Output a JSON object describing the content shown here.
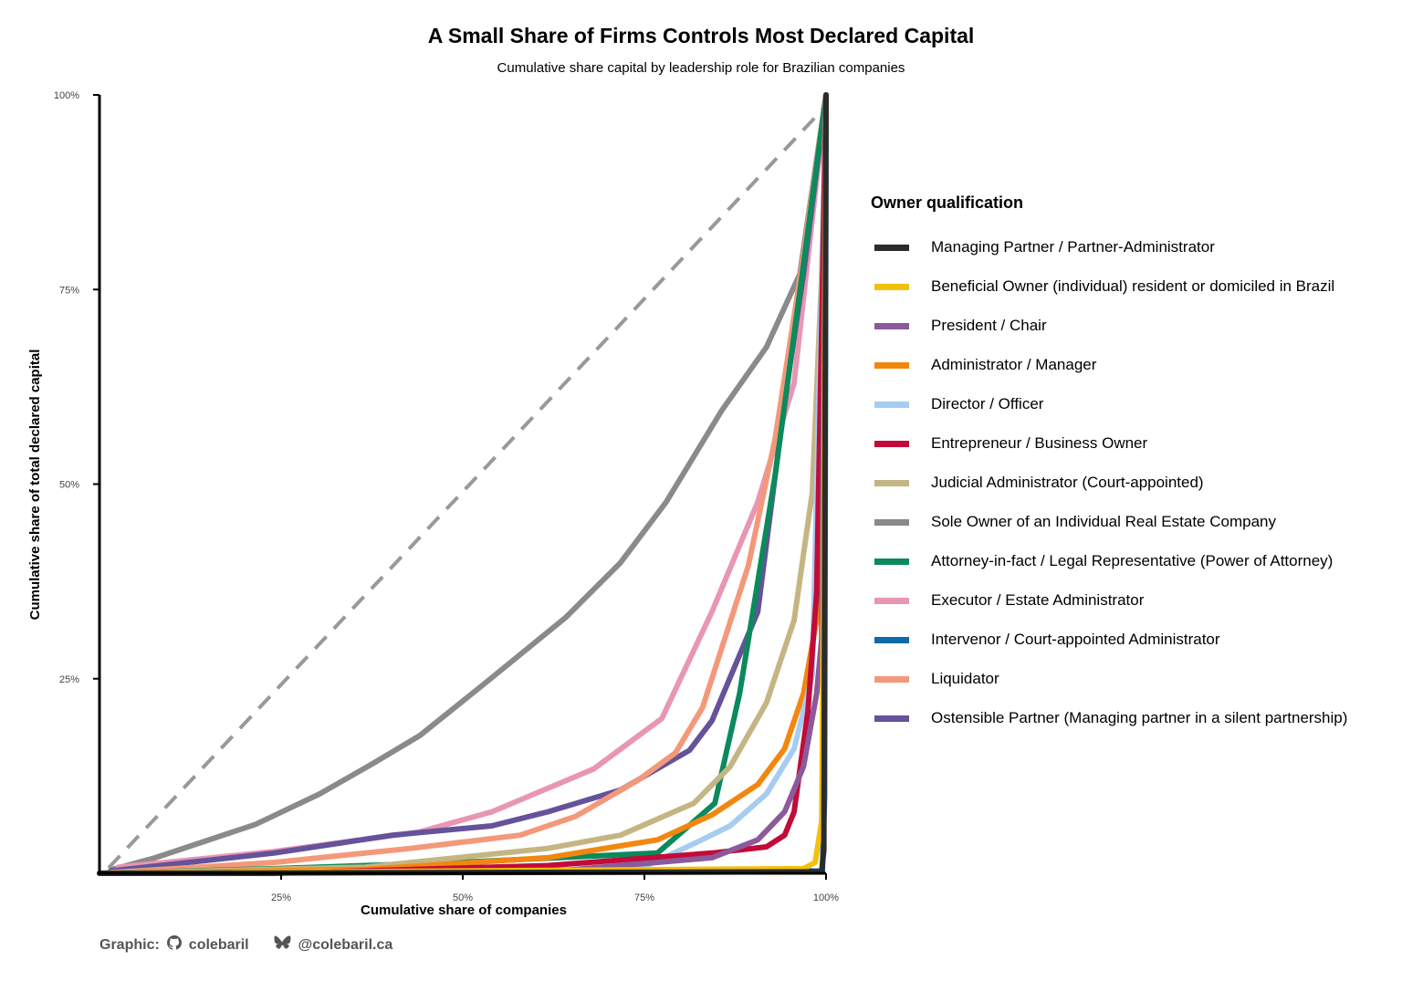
{
  "chart_data": {
    "type": "line",
    "title": "A Small Share of Firms Controls Most Declared Capital",
    "subtitle": "Cumulative share capital by leadership role for Brazilian companies",
    "xlabel": "Cumulative share of companies",
    "ylabel": "Cumulative share of total declared capital",
    "xlim": [
      0,
      100
    ],
    "ylim": [
      0,
      100
    ],
    "x_ticks": [
      {
        "value": 25,
        "label": "25%"
      },
      {
        "value": 50,
        "label": "50%"
      },
      {
        "value": 75,
        "label": "75%"
      },
      {
        "value": 100,
        "label": "100%"
      }
    ],
    "y_ticks": [
      {
        "value": 25,
        "label": "25%"
      },
      {
        "value": 50,
        "label": "50%"
      },
      {
        "value": 75,
        "label": "75%"
      },
      {
        "value": 100,
        "label": "100%"
      }
    ],
    "equality_line": {
      "points": [
        [
          0,
          0
        ],
        [
          100,
          100
        ]
      ],
      "color": "#999999",
      "style": "dashed"
    },
    "legend_title": "Owner qualification",
    "legend_position": "right",
    "series": [
      {
        "name": "Managing Partner / Partner-Administrator",
        "color": "#2b2b2b",
        "points": [
          [
            0,
            0
          ],
          [
            99.4,
            0.2
          ],
          [
            99.7,
            3
          ],
          [
            100,
            100
          ]
        ]
      },
      {
        "name": "Beneficial Owner (individual) resident or domiciled in Brazil",
        "color": "#f2c10c",
        "points": [
          [
            0,
            0
          ],
          [
            96.9,
            0.6
          ],
          [
            98.5,
            1.4
          ],
          [
            99.4,
            6.7
          ],
          [
            99.6,
            30
          ],
          [
            100,
            100
          ]
        ]
      },
      {
        "name": "President / Chair",
        "color": "#8b5a9a",
        "points": [
          [
            0,
            0
          ],
          [
            61.7,
            0.2
          ],
          [
            84.3,
            2
          ],
          [
            90.6,
            4.3
          ],
          [
            94.3,
            7.9
          ],
          [
            96.9,
            13.7
          ],
          [
            98.7,
            23.1
          ],
          [
            99.4,
            30.1
          ],
          [
            100,
            100
          ]
        ]
      },
      {
        "name": "Administrator / Manager",
        "color": "#f2870f",
        "points": [
          [
            0,
            0
          ],
          [
            36.6,
            0.5
          ],
          [
            61.7,
            2
          ],
          [
            76.8,
            4.3
          ],
          [
            84.3,
            7.5
          ],
          [
            90.6,
            11.4
          ],
          [
            94.3,
            16
          ],
          [
            96.9,
            23.1
          ],
          [
            98.7,
            32.5
          ],
          [
            100,
            100
          ]
        ]
      },
      {
        "name": "Director / Officer",
        "color": "#a6cdf0",
        "points": [
          [
            0,
            0
          ],
          [
            74.2,
            0.5
          ],
          [
            81.8,
            3.8
          ],
          [
            86.8,
            6.1
          ],
          [
            91.8,
            10.2
          ],
          [
            95.6,
            16
          ],
          [
            98.1,
            25.4
          ],
          [
            100,
            100
          ]
        ]
      },
      {
        "name": "Entrepreneur / Business Owner",
        "color": "#c20b3a",
        "points": [
          [
            0,
            0
          ],
          [
            24,
            0
          ],
          [
            61.7,
            1
          ],
          [
            84.3,
            2.6
          ],
          [
            91.8,
            3.4
          ],
          [
            94.3,
            4.9
          ],
          [
            95.6,
            7.9
          ],
          [
            97.5,
            20.8
          ],
          [
            98.7,
            36
          ],
          [
            100,
            100
          ]
        ]
      },
      {
        "name": "Judicial Administrator (Court-appointed)",
        "color": "#c4b583",
        "points": [
          [
            0,
            0
          ],
          [
            36.6,
            0.8
          ],
          [
            61.7,
            3.2
          ],
          [
            71.7,
            4.9
          ],
          [
            81.8,
            9
          ],
          [
            86.8,
            13.7
          ],
          [
            91.8,
            21.9
          ],
          [
            95.6,
            32.5
          ],
          [
            98.1,
            48.9
          ],
          [
            99.4,
            77
          ],
          [
            100,
            100
          ]
        ]
      },
      {
        "name": "Sole Owner of an Individual Real Estate Company",
        "color": "#8a8a8a",
        "points": [
          [
            1.8,
            0.5
          ],
          [
            7.7,
            2
          ],
          [
            21.5,
            6.3
          ],
          [
            30.3,
            10.2
          ],
          [
            37.8,
            14.2
          ],
          [
            44.1,
            17.7
          ],
          [
            52.9,
            24.3
          ],
          [
            64.2,
            32.9
          ],
          [
            71.7,
            39.9
          ],
          [
            78,
            47.7
          ],
          [
            85.6,
            59.4
          ],
          [
            91.8,
            67.6
          ],
          [
            96.4,
            77
          ],
          [
            100,
            100
          ]
        ]
      },
      {
        "name": "Attorney-in-fact / Legal Representative (Power of Attorney)",
        "color": "#0b8a5c",
        "points": [
          [
            0,
            0
          ],
          [
            24,
            0.6
          ],
          [
            49.1,
            1.4
          ],
          [
            76.8,
            2.6
          ],
          [
            84.7,
            9
          ],
          [
            88.1,
            23.1
          ],
          [
            93,
            51.2
          ],
          [
            96.9,
            78.2
          ],
          [
            100,
            100
          ]
        ]
      },
      {
        "name": "Executor / Estate Administrator",
        "color": "#e896b4",
        "points": [
          [
            2.6,
            0.8
          ],
          [
            24,
            2.8
          ],
          [
            44,
            5.3
          ],
          [
            54,
            7.9
          ],
          [
            68,
            13.4
          ],
          [
            77.4,
            19.9
          ],
          [
            84.3,
            33.6
          ],
          [
            90.6,
            47.7
          ],
          [
            95.6,
            63
          ],
          [
            100,
            100
          ]
        ]
      },
      {
        "name": "Intervenor / Court-appointed Administrator",
        "color": "#0e6aa8",
        "points": [
          [
            0,
            0
          ],
          [
            99.5,
            0.3
          ],
          [
            99.8,
            10
          ],
          [
            100,
            100
          ]
        ]
      },
      {
        "name": "Liquidator",
        "color": "#f4987a",
        "points": [
          [
            0,
            0
          ],
          [
            24,
            1.4
          ],
          [
            42.8,
            3.2
          ],
          [
            57.9,
            4.9
          ],
          [
            65.5,
            7.3
          ],
          [
            74.2,
            12
          ],
          [
            79.3,
            15.5
          ],
          [
            83,
            21.3
          ],
          [
            89.3,
            39.5
          ],
          [
            93,
            55.9
          ],
          [
            96.9,
            79.4
          ],
          [
            100,
            100
          ]
        ]
      },
      {
        "name": "Ostensible Partner (Managing partner in a silent partnership)",
        "color": "#65529a",
        "points": [
          [
            1.5,
            0.3
          ],
          [
            24,
            2.6
          ],
          [
            40.3,
            4.9
          ],
          [
            54,
            6.1
          ],
          [
            61.7,
            7.9
          ],
          [
            71.7,
            10.7
          ],
          [
            81.2,
            15.8
          ],
          [
            84.3,
            19.6
          ],
          [
            90.6,
            33.6
          ],
          [
            94.3,
            60.6
          ],
          [
            96.9,
            77
          ],
          [
            100,
            100
          ]
        ]
      }
    ]
  },
  "footer": {
    "label": "Graphic:",
    "github": "colebaril",
    "bluesky": "@colebaril.ca"
  }
}
